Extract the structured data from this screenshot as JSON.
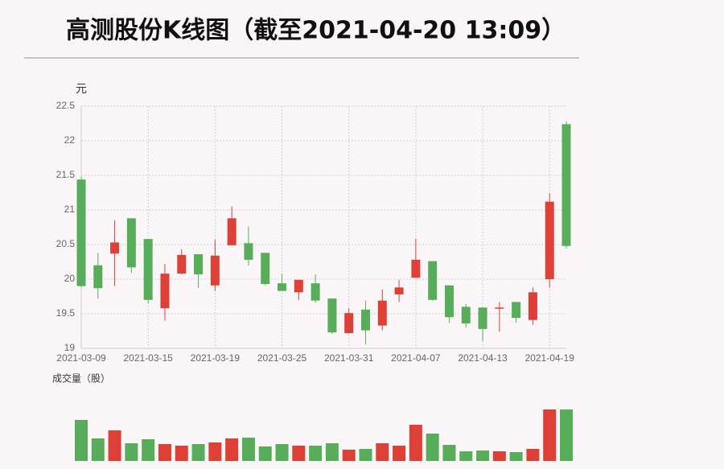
{
  "chart_data": [
    {
      "type": "candlestick",
      "title": "高测股份K线图（截至2021-04-20 13:09）",
      "y_label": "元",
      "categories": [
        "2021-03-09",
        null,
        null,
        null,
        "2021-03-15",
        null,
        null,
        null,
        "2021-03-19",
        null,
        null,
        null,
        "2021-03-25",
        null,
        null,
        null,
        "2021-03-31",
        null,
        null,
        null,
        "2021-04-07",
        null,
        null,
        null,
        "2021-04-13",
        null,
        null,
        null,
        "2021-04-19",
        null
      ],
      "open": [
        19.9,
        19.87,
        20.53,
        20.17,
        19.7,
        20.08,
        20.35,
        20.07,
        20.34,
        20.88,
        20.28,
        19.93,
        19.83,
        19.99,
        19.69,
        19.23,
        19.51,
        19.26,
        19.69,
        19.88,
        20.28,
        19.7,
        19.45,
        19.36,
        19.28,
        19.59,
        19.44,
        19.81,
        21.12,
        20.48
      ],
      "high": [
        21.48,
        20.38,
        20.85,
        20.88,
        20.58,
        20.22,
        20.43,
        20.36,
        20.57,
        21.05,
        20.76,
        20.38,
        20.08,
        19.99,
        20.07,
        19.72,
        19.58,
        19.69,
        19.85,
        19.99,
        20.58,
        20.26,
        19.91,
        19.64,
        19.59,
        19.67,
        19.67,
        19.88,
        21.24,
        22.28
      ],
      "low": [
        19.88,
        19.72,
        19.9,
        20.09,
        19.65,
        19.4,
        20.07,
        19.87,
        19.83,
        20.49,
        20.2,
        19.91,
        19.83,
        19.7,
        19.66,
        19.21,
        19.21,
        19.06,
        19.26,
        19.67,
        20.02,
        19.69,
        19.37,
        19.3,
        19.1,
        19.24,
        19.37,
        19.34,
        19.88,
        20.44
      ],
      "close": [
        21.44,
        20.2,
        20.37,
        20.88,
        20.58,
        19.58,
        20.08,
        20.36,
        19.91,
        20.49,
        20.52,
        20.38,
        19.94,
        19.81,
        19.94,
        19.72,
        19.22,
        19.56,
        19.33,
        19.78,
        20.02,
        20.26,
        19.91,
        19.6,
        19.59,
        19.58,
        19.67,
        19.41,
        20.0,
        22.24
      ],
      "rise_color": "#58ad5a",
      "fall_color": "#dd4036",
      "ylim": [
        19,
        22.5
      ],
      "yticks": [
        19,
        19.5,
        20,
        20.5,
        21,
        21.5,
        22,
        22.5
      ],
      "grid": true
    },
    {
      "type": "bar",
      "y_label": "成交量（股）",
      "values": [
        51,
        28,
        38,
        22,
        27,
        21,
        19,
        21,
        23,
        28,
        29,
        18,
        21,
        19,
        19,
        22,
        14,
        15,
        22,
        19,
        45,
        34,
        20,
        12,
        13,
        12,
        11,
        15,
        64,
        64
      ],
      "colors": [
        "#58ad5a",
        "#58ad5a",
        "#dd4036",
        "#58ad5a",
        "#58ad5a",
        "#dd4036",
        "#dd4036",
        "#58ad5a",
        "#dd4036",
        "#dd4036",
        "#58ad5a",
        "#58ad5a",
        "#58ad5a",
        "#dd4036",
        "#58ad5a",
        "#58ad5a",
        "#dd4036",
        "#58ad5a",
        "#dd4036",
        "#dd4036",
        "#dd4036",
        "#58ad5a",
        "#58ad5a",
        "#58ad5a",
        "#58ad5a",
        "#dd4036",
        "#58ad5a",
        "#dd4036",
        "#dd4036",
        "#58ad5a"
      ],
      "ylim": [
        0,
        64
      ]
    }
  ]
}
